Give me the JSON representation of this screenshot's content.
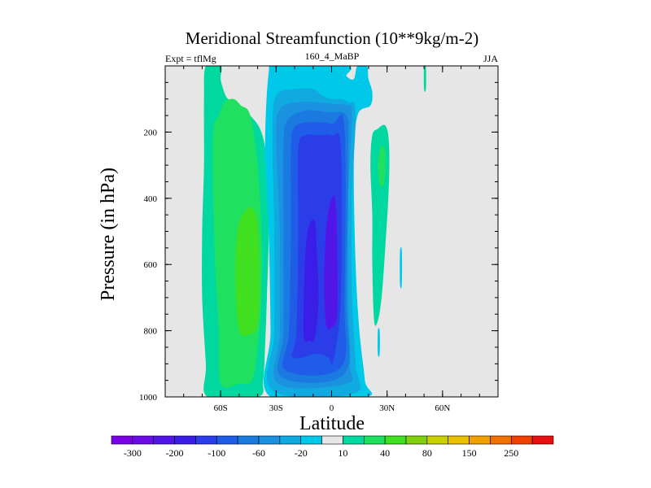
{
  "chart_data": {
    "type": "contour",
    "title": "Meridional Streamfunction (10**9kg/m-2)",
    "left_label": "Expt = tflMg",
    "center_label": "160_4_MaBP",
    "right_label": "JJA",
    "xlabel": "Latitude",
    "ylabel": "Pressure (in hPa)",
    "x_range": [
      -90,
      90
    ],
    "y_range": [
      0,
      1000
    ],
    "x_ticks": [
      {
        "value": -60,
        "label": "60S"
      },
      {
        "value": -30,
        "label": "30S"
      },
      {
        "value": 0,
        "label": "0"
      },
      {
        "value": 30,
        "label": "30N"
      },
      {
        "value": 60,
        "label": "60N"
      }
    ],
    "y_ticks": [
      {
        "value": 200,
        "label": "200"
      },
      {
        "value": 400,
        "label": "400"
      },
      {
        "value": 600,
        "label": "600"
      },
      {
        "value": 800,
        "label": "800"
      },
      {
        "value": 1000,
        "label": "1000"
      }
    ],
    "colorbar": {
      "levels": [
        -350,
        -300,
        -250,
        -200,
        -150,
        -100,
        -80,
        -60,
        -40,
        -20,
        -10,
        10,
        20,
        40,
        60,
        80,
        100,
        150,
        200,
        250,
        300
      ],
      "labeled": [
        {
          "index": 1,
          "label": "-300"
        },
        {
          "index": 3,
          "label": "-200"
        },
        {
          "index": 5,
          "label": "-100"
        },
        {
          "index": 7,
          "label": "-60"
        },
        {
          "index": 9,
          "label": "-20"
        },
        {
          "index": 11,
          "label": "10"
        },
        {
          "index": 13,
          "label": "40"
        },
        {
          "index": 15,
          "label": "80"
        },
        {
          "index": 17,
          "label": "150"
        },
        {
          "index": 19,
          "label": "250"
        }
      ],
      "colors": [
        "#7a00e6",
        "#6a0ae6",
        "#5215e8",
        "#3a1ee8",
        "#2a3de8",
        "#1f5de8",
        "#1a7ae0",
        "#1a92e0",
        "#10aae0",
        "#00c8e8",
        "#e6e6e6",
        "#00d8a0",
        "#20e060",
        "#40e020",
        "#80d010",
        "#c8d000",
        "#e8c000",
        "#f0a000",
        "#f07000",
        "#f04000",
        "#e61010"
      ]
    },
    "background_color": "#e6e6e6",
    "regions": [
      {
        "name": "ss-cell-outer",
        "value": 15,
        "color": "#00d8a0",
        "poly": [
          [
            -67,
            1000
          ],
          [
            -68,
            900
          ],
          [
            -70,
            700
          ],
          [
            -70,
            500
          ],
          [
            -69,
            300
          ],
          [
            -69,
            100
          ],
          [
            -68,
            0
          ],
          [
            -60,
            0
          ],
          [
            -60,
            40
          ],
          [
            -58,
            80
          ],
          [
            -56,
            100
          ],
          [
            -51,
            120
          ],
          [
            -44,
            150
          ],
          [
            -38,
            200
          ],
          [
            -35,
            300
          ],
          [
            -34,
            500
          ],
          [
            -35,
            700
          ],
          [
            -36,
            850
          ],
          [
            -37,
            950
          ],
          [
            -40,
            1000
          ]
        ]
      },
      {
        "name": "ss-cell-inner",
        "value": 30,
        "color": "#20e060",
        "poly": [
          [
            -60,
            960
          ],
          [
            -61,
            800
          ],
          [
            -63,
            600
          ],
          [
            -64,
            400
          ],
          [
            -64,
            200
          ],
          [
            -61,
            150
          ],
          [
            -58,
            110
          ],
          [
            -53,
            100
          ],
          [
            -49,
            120
          ],
          [
            -44,
            150
          ],
          [
            -40,
            300
          ],
          [
            -38,
            500
          ],
          [
            -38,
            700
          ],
          [
            -40,
            850
          ],
          [
            -43,
            950
          ],
          [
            -50,
            960
          ]
        ]
      },
      {
        "name": "ss-cell-core",
        "value": 45,
        "color": "#40e020",
        "poly": [
          [
            -50,
            800
          ],
          [
            -52,
            650
          ],
          [
            -51,
            500
          ],
          [
            -47,
            440
          ],
          [
            -43,
            430
          ],
          [
            -40,
            480
          ],
          [
            -39,
            650
          ],
          [
            -40,
            780
          ],
          [
            -44,
            810
          ]
        ]
      },
      {
        "name": "nh-cell-1",
        "value": -15,
        "color": "#00c8e8",
        "poly": [
          [
            -33,
            1000
          ],
          [
            -33,
            800
          ],
          [
            -34,
            500
          ],
          [
            -36,
            250
          ],
          [
            -34,
            20
          ],
          [
            -30,
            0
          ],
          [
            8,
            0
          ],
          [
            8,
            30
          ],
          [
            12,
            40
          ],
          [
            14,
            0
          ],
          [
            19,
            0
          ],
          [
            20,
            40
          ],
          [
            22,
            80
          ],
          [
            21,
            120
          ],
          [
            14,
            150
          ],
          [
            12,
            300
          ],
          [
            13,
            600
          ],
          [
            15,
            800
          ],
          [
            18,
            950
          ],
          [
            18,
            1000
          ]
        ]
      },
      {
        "name": "nh-cell-2",
        "value": -30,
        "color": "#10aae0",
        "poly": [
          [
            -32,
            980
          ],
          [
            -31,
            800
          ],
          [
            -31,
            500
          ],
          [
            -32,
            200
          ],
          [
            -30,
            90
          ],
          [
            -20,
            70
          ],
          [
            -10,
            70
          ],
          [
            -5,
            90
          ],
          [
            0,
            100
          ],
          [
            5,
            100
          ],
          [
            9,
            110
          ],
          [
            13,
            140
          ],
          [
            11,
            400
          ],
          [
            11,
            700
          ],
          [
            13,
            900
          ],
          [
            12,
            990
          ]
        ]
      },
      {
        "name": "nh-cell-3",
        "value": -50,
        "color": "#1a92e0",
        "poly": [
          [
            -29,
            960
          ],
          [
            -28,
            800
          ],
          [
            -28,
            500
          ],
          [
            -30,
            220
          ],
          [
            -28,
            130
          ],
          [
            -18,
            110
          ],
          [
            -8,
            110
          ],
          [
            0,
            115
          ],
          [
            9,
            120
          ],
          [
            11,
            145
          ],
          [
            9,
            400
          ],
          [
            9,
            700
          ],
          [
            10,
            900
          ],
          [
            8,
            960
          ]
        ]
      },
      {
        "name": "nh-cell-4",
        "value": -70,
        "color": "#1a7ae0",
        "poly": [
          [
            -27,
            940
          ],
          [
            -26,
            800
          ],
          [
            -26,
            500
          ],
          [
            -26,
            240
          ],
          [
            -24,
            165
          ],
          [
            -14,
            135
          ],
          [
            -2,
            140
          ],
          [
            8,
            150
          ],
          [
            9,
            260
          ],
          [
            8,
            700
          ],
          [
            7,
            930
          ]
        ]
      },
      {
        "name": "nh-cell-5",
        "value": -90,
        "color": "#1f5de8",
        "poly": [
          [
            -25,
            920
          ],
          [
            -23,
            800
          ],
          [
            -22,
            500
          ],
          [
            -22,
            250
          ],
          [
            -20,
            185
          ],
          [
            -12,
            170
          ],
          [
            0,
            175
          ],
          [
            7,
            190
          ],
          [
            7,
            700
          ],
          [
            5,
            910
          ]
        ]
      },
      {
        "name": "nh-cell-6",
        "value": -125,
        "color": "#2a3de8",
        "poly": [
          [
            -21,
            880
          ],
          [
            -19,
            800
          ],
          [
            -18,
            500
          ],
          [
            -18,
            250
          ],
          [
            -14,
            210
          ],
          [
            -7,
            210
          ],
          [
            0,
            210
          ],
          [
            5,
            250
          ],
          [
            5,
            700
          ],
          [
            1,
            890
          ],
          [
            -2,
            880
          ],
          [
            -8,
            870
          ]
        ]
      },
      {
        "name": "nh-cell-7",
        "value": -175,
        "color": "#3a1ee8",
        "poly": [
          [
            -15,
            820
          ],
          [
            -15,
            700
          ],
          [
            -14,
            550
          ],
          [
            -12,
            480
          ],
          [
            -9,
            470
          ],
          [
            -8,
            560
          ],
          [
            -7,
            700
          ],
          [
            -9,
            820
          ],
          [
            -12,
            830
          ]
        ]
      },
      {
        "name": "nh-cell-8",
        "value": -225,
        "color": "#5215e8",
        "poly": [
          [
            -3,
            780
          ],
          [
            -4,
            650
          ],
          [
            -3,
            500
          ],
          [
            -1,
            420
          ],
          [
            2,
            400
          ],
          [
            3,
            550
          ],
          [
            3,
            750
          ],
          [
            0,
            790
          ]
        ]
      },
      {
        "name": "ne-cell",
        "value": 15,
        "color": "#00d8a0",
        "poly": [
          [
            23,
            770
          ],
          [
            22,
            600
          ],
          [
            22,
            450
          ],
          [
            21,
            300
          ],
          [
            22,
            210
          ],
          [
            25,
            190
          ],
          [
            29,
            180
          ],
          [
            31,
            230
          ],
          [
            31,
            360
          ],
          [
            29,
            550
          ],
          [
            27,
            700
          ],
          [
            25,
            770
          ]
        ]
      },
      {
        "name": "ne-cell-core",
        "value": 30,
        "color": "#20e060",
        "poly": [
          [
            26,
            360
          ],
          [
            25,
            300
          ],
          [
            26,
            255
          ],
          [
            27,
            240
          ],
          [
            29,
            255
          ],
          [
            29,
            320
          ],
          [
            28,
            360
          ]
        ]
      },
      {
        "name": "ne-sliver-1",
        "value": -15,
        "color": "#00c8e8",
        "poly": [
          [
            25,
            870
          ],
          [
            25,
            800
          ],
          [
            26,
            800
          ],
          [
            26,
            870
          ]
        ]
      },
      {
        "name": "ne-sliver-2",
        "value": -15,
        "color": "#00c8e8",
        "poly": [
          [
            37,
            660
          ],
          [
            37,
            560
          ],
          [
            38,
            560
          ],
          [
            38,
            660
          ]
        ]
      },
      {
        "name": "ne-sliver-3",
        "value": 15,
        "color": "#00d8a0",
        "poly": [
          [
            50,
            0
          ],
          [
            51,
            0
          ],
          [
            51,
            70
          ],
          [
            50,
            70
          ]
        ]
      }
    ]
  }
}
